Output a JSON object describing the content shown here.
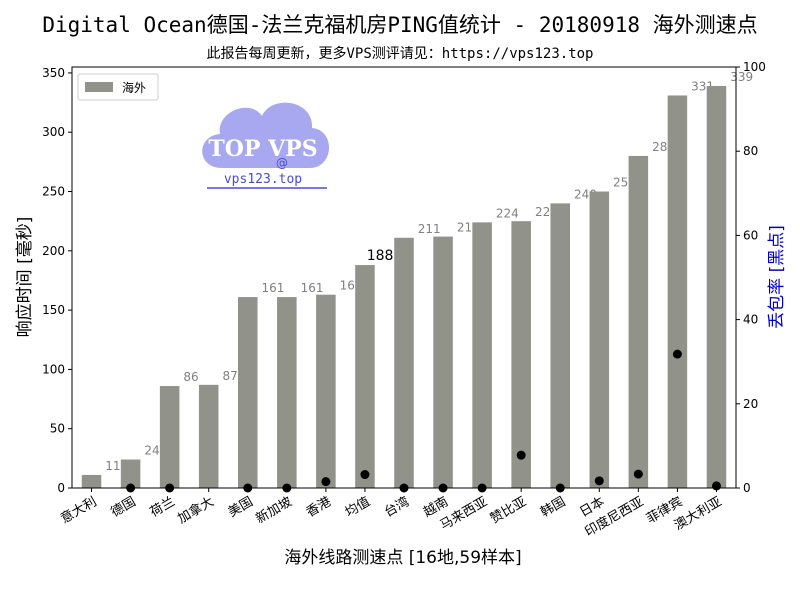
{
  "title": "Digital Ocean德国-法兰克福机房PING值统计 - 20180918 海外测速点",
  "subtitle": "此报告每周更新，更多VPS测评请见：https://vps123.top",
  "watermark": {
    "logo_text": "TOP VPS",
    "at": "@",
    "url": "vps123.top"
  },
  "colors": {
    "bar": "#91928a",
    "dot": "#000000",
    "right_axis_label": "#0000cc",
    "watermark": "#a3a3f0"
  },
  "chart_data": {
    "type": "bar",
    "xlabel": "海外线路测速点 [16地,59样本]",
    "ylabel": "响应时间 [毫秒]",
    "y2label": "丢包率 [黑点]",
    "ylim": [
      0,
      355
    ],
    "y2lim": [
      0,
      100
    ],
    "yticks": [
      0,
      50,
      100,
      150,
      200,
      250,
      300,
      350
    ],
    "y2ticks": [
      0,
      20,
      40,
      60,
      80,
      100
    ],
    "legend": {
      "label": "海外",
      "position": "top-left"
    },
    "grid": false,
    "average_index": 7,
    "categories": [
      "意大利",
      "德国",
      "荷兰",
      "加拿大",
      "美国",
      "新加坡",
      "香港",
      "均值",
      "台湾",
      "越南",
      "马来西亚",
      "赞比亚",
      "韩国",
      "日本",
      "印度尼西亚",
      "菲律宾",
      "澳大利亚"
    ],
    "values": [
      11,
      24,
      86,
      87,
      161,
      161,
      163,
      188,
      211,
      212,
      224,
      225,
      240,
      250,
      280,
      331,
      339
    ],
    "loss_points": [
      {
        "x": 1,
        "y": 0
      },
      {
        "x": 2,
        "y": 0
      },
      {
        "x": 4,
        "y": 0
      },
      {
        "x": 5,
        "y": 0
      },
      {
        "x": 6,
        "y": 1.5
      },
      {
        "x": 7,
        "y": 3.2
      },
      {
        "x": 8,
        "y": 0
      },
      {
        "x": 9,
        "y": 0
      },
      {
        "x": 10,
        "y": 0
      },
      {
        "x": 11,
        "y": 7.8
      },
      {
        "x": 12,
        "y": 0
      },
      {
        "x": 13,
        "y": 1.7
      },
      {
        "x": 14,
        "y": 3.3
      },
      {
        "x": 15,
        "y": 31.8
      },
      {
        "x": 16,
        "y": 0.5
      }
    ]
  }
}
